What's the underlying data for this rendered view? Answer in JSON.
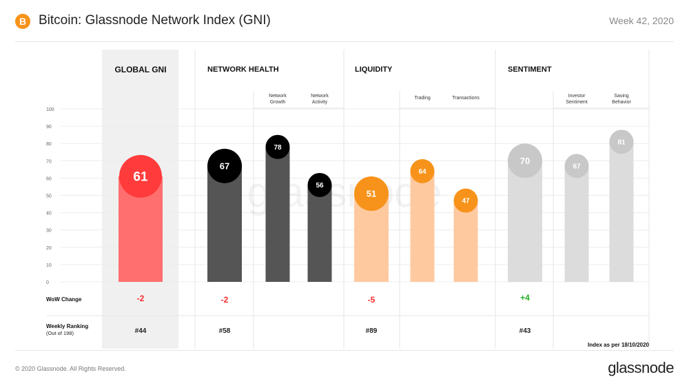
{
  "header": {
    "logo_glyph": "B",
    "title": "Bitcoin: Glassnode Network Index (GNI)",
    "week": "Week 42, 2020"
  },
  "footer": {
    "copyright": "© 2020 Glassnode. All Rights Reserved.",
    "brand": "glassnode"
  },
  "watermark": "glassnode",
  "index_note": "Index as per 18/10/2020",
  "row_labels": {
    "wow": "WoW  Change",
    "ranking_line1": "Weekly Ranking",
    "ranking_line2": "(Out of 198)"
  },
  "colors": {
    "global": "#ff3b3b",
    "global_bar": "#ff6f6f",
    "network_health": "#000000",
    "network_health_bar": "#555555",
    "liquidity": "#f7931a",
    "liquidity_bar": "#ffc9a0",
    "sentiment": "#c8c8c8",
    "sentiment_bar": "#dcdcdc",
    "negative": "#ff2a2a",
    "positive": "#22b022"
  },
  "chart_data": {
    "type": "bar",
    "ylim": [
      0,
      100
    ],
    "y_ticks": [
      "0",
      "10",
      "20",
      "30",
      "40",
      "50",
      "60",
      "70",
      "80",
      "90",
      "100"
    ],
    "grid": true,
    "groups": [
      {
        "name": "GLOBAL GNI",
        "value": 61,
        "wow": "-2",
        "rank": "#44"
      },
      {
        "name": "NETWORK HEALTH",
        "value": 67,
        "wow": "-2",
        "rank": "#58"
      },
      {
        "name": "LIQUIDITY",
        "value": 51,
        "wow": "-5",
        "rank": "#89"
      },
      {
        "name": "SENTIMENT",
        "value": 70,
        "wow": "+4",
        "rank": "#43"
      }
    ],
    "sub_indices": [
      {
        "group": "NETWORK HEALTH",
        "name_line1": "Network",
        "name_line2": "Growth",
        "value": 78
      },
      {
        "group": "NETWORK HEALTH",
        "name_line1": "Network",
        "name_line2": "Activity",
        "value": 56
      },
      {
        "group": "LIQUIDITY",
        "name_line1": "Trading",
        "name_line2": "",
        "value": 64
      },
      {
        "group": "LIQUIDITY",
        "name_line1": "Transactions",
        "name_line2": "",
        "value": 47
      },
      {
        "group": "SENTIMENT",
        "name_line1": "Investor",
        "name_line2": "Sentiment",
        "value": 67
      },
      {
        "group": "SENTIMENT",
        "name_line1": "Saving",
        "name_line2": "Behavior",
        "value": 81
      }
    ]
  }
}
